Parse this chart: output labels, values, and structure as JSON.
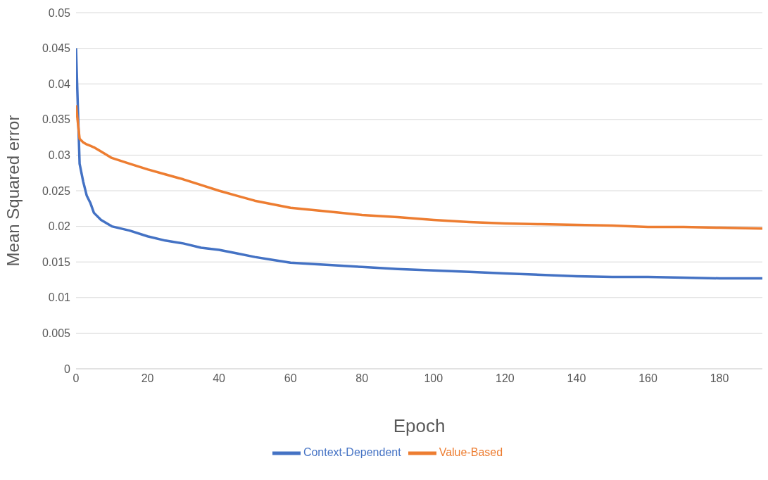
{
  "chart_data": {
    "type": "line",
    "xlabel": "Epoch",
    "ylabel": "Mean Squared error",
    "x": [
      0,
      1,
      2,
      3,
      4,
      5,
      7,
      10,
      15,
      20,
      25,
      30,
      35,
      40,
      45,
      50,
      55,
      60,
      70,
      80,
      90,
      100,
      110,
      120,
      130,
      140,
      150,
      160,
      170,
      180,
      192
    ],
    "series": [
      {
        "name": "Context-Dependent",
        "color": "#4472c4",
        "values": [
          0.045,
          0.0288,
          0.0263,
          0.0243,
          0.0233,
          0.0219,
          0.0209,
          0.02,
          0.0194,
          0.0186,
          0.018,
          0.0176,
          0.017,
          0.0167,
          0.0162,
          0.0157,
          0.0153,
          0.0149,
          0.0146,
          0.0143,
          0.014,
          0.0138,
          0.0136,
          0.0134,
          0.0132,
          0.013,
          0.0129,
          0.0129,
          0.0128,
          0.0127,
          0.0127
        ]
      },
      {
        "name": "Value-Based",
        "color": "#ed7d31",
        "values": [
          0.037,
          0.0323,
          0.0318,
          0.0315,
          0.0313,
          0.0311,
          0.0305,
          0.0296,
          0.0288,
          0.028,
          0.0273,
          0.0266,
          0.0258,
          0.025,
          0.0243,
          0.0236,
          0.0231,
          0.0226,
          0.0221,
          0.0216,
          0.0213,
          0.0209,
          0.0206,
          0.0204,
          0.0203,
          0.0202,
          0.0201,
          0.0199,
          0.0199,
          0.0198,
          0.0197
        ]
      }
    ],
    "xlim": [
      0,
      192
    ],
    "xticks": [
      0,
      20,
      40,
      60,
      80,
      100,
      120,
      140,
      160,
      180
    ],
    "ylim": [
      0,
      0.05
    ],
    "yticks": [
      0,
      0.005,
      0.01,
      0.015,
      0.02,
      0.025,
      0.03,
      0.035,
      0.04,
      0.045,
      0.05
    ],
    "grid": "y",
    "legend": "bottom",
    "marker": "none",
    "line_style": "solid"
  }
}
